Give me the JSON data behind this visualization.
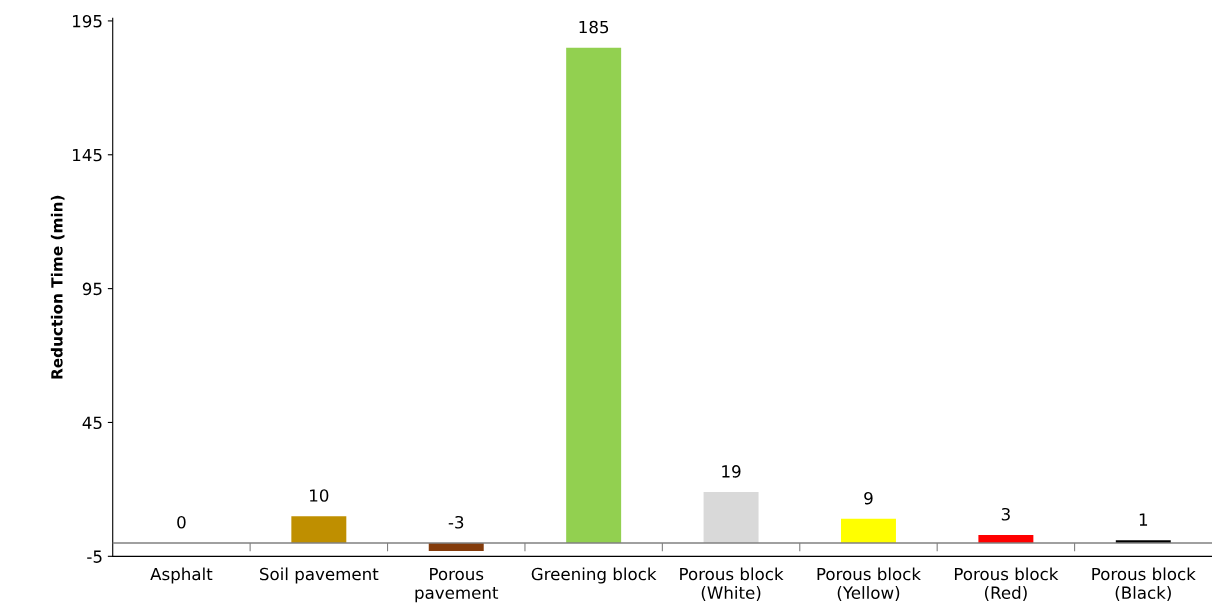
{
  "chart_data": {
    "type": "bar",
    "ylabel": "Reduction Time (min)",
    "categories": [
      "Asphalt",
      "Soil pavement",
      "Porous\npavement",
      "Greening block",
      "Porous block\n(White)",
      "Porous block\n(Yellow)",
      "Porous block\n(Red)",
      "Porous block\n(Black)"
    ],
    "values": [
      0,
      10,
      -3,
      185,
      19,
      9,
      3,
      1
    ],
    "colors": [
      "#7f7f7f",
      "#bf8f00",
      "#843c0c",
      "#92d050",
      "#d9d9d9",
      "#ffff00",
      "#ff0000",
      "#000000"
    ],
    "ylim": [
      -5,
      196
    ],
    "yticks": [
      -5,
      45,
      95,
      145,
      195
    ],
    "ref_lines": [
      {
        "axis": "y",
        "value": 0,
        "color": "#808080"
      }
    ],
    "data_labels": true,
    "grid": false,
    "legend": false
  }
}
